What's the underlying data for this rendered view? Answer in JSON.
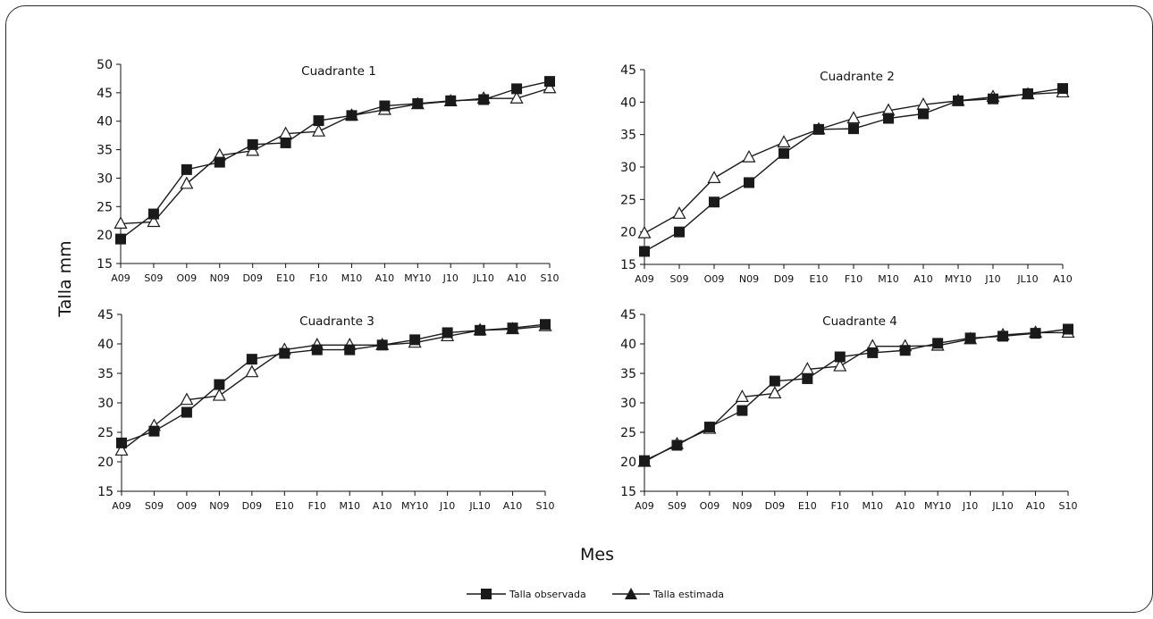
{
  "ylabel": "Talla mm",
  "xlabel": "Mes",
  "legend": {
    "observed_label": "Talla observada",
    "estimated_label": "Talla estimada"
  },
  "colors": {
    "line": "#1a1a1a",
    "observed_fill": "#1a1a1a",
    "estimated_fill": "#ffffff"
  },
  "chart_data": [
    {
      "type": "line",
      "title": "Cuadrante 1",
      "categories": [
        "A09",
        "S09",
        "O09",
        "N09",
        "D09",
        "E10",
        "F10",
        "M10",
        "A10",
        "MY10",
        "J10",
        "JL10",
        "A10",
        "S10"
      ],
      "yticks": [
        15,
        20,
        25,
        30,
        35,
        40,
        45,
        50
      ],
      "ylim": [
        15,
        50
      ],
      "series": [
        {
          "name": "Talla observada",
          "marker": "square",
          "values": [
            19.3,
            23.7,
            31.5,
            32.8,
            35.9,
            36.2,
            40.1,
            41.0,
            42.7,
            43.1,
            43.6,
            43.8,
            45.7,
            47.0
          ]
        },
        {
          "name": "Talla estimada",
          "marker": "triangle",
          "values": [
            22.0,
            22.3,
            29.0,
            34.0,
            34.8,
            37.8,
            38.2,
            41.0,
            42.0,
            43.0,
            43.5,
            44.0,
            44.0,
            45.8
          ]
        }
      ]
    },
    {
      "type": "line",
      "title": "Cuadrante 2",
      "categories": [
        "A09",
        "S09",
        "O09",
        "N09",
        "D09",
        "E10",
        "F10",
        "M10",
        "A10",
        "MY10",
        "J10",
        "JL10",
        "A10"
      ],
      "yticks": [
        15,
        20,
        25,
        30,
        35,
        40,
        45
      ],
      "ylim": [
        15,
        45
      ],
      "series": [
        {
          "name": "Talla observada",
          "marker": "square",
          "values": [
            17.0,
            20.0,
            24.6,
            27.6,
            32.1,
            35.8,
            35.9,
            37.5,
            38.2,
            40.2,
            40.5,
            41.3,
            42.1
          ]
        },
        {
          "name": "Talla estimada",
          "marker": "triangle",
          "values": [
            19.8,
            22.8,
            28.3,
            31.5,
            33.8,
            35.8,
            37.5,
            38.7,
            39.6,
            40.2,
            40.8,
            41.2,
            41.5
          ]
        }
      ]
    },
    {
      "type": "line",
      "title": "Cuadrante 3",
      "categories": [
        "A09",
        "S09",
        "O09",
        "N09",
        "D09",
        "E10",
        "F10",
        "M10",
        "A10",
        "MY10",
        "J10",
        "JL10",
        "A10",
        "S10"
      ],
      "yticks": [
        15,
        20,
        25,
        30,
        35,
        40,
        45
      ],
      "ylim": [
        15,
        45
      ],
      "series": [
        {
          "name": "Talla observada",
          "marker": "square",
          "values": [
            23.2,
            25.2,
            28.4,
            33.1,
            37.4,
            38.4,
            39.0,
            39.0,
            39.8,
            40.7,
            41.9,
            42.3,
            42.7,
            43.3
          ]
        },
        {
          "name": "Talla estimada",
          "marker": "triangle",
          "values": [
            21.9,
            26.1,
            30.5,
            31.2,
            35.2,
            39.0,
            39.8,
            39.8,
            39.8,
            40.2,
            41.3,
            42.3,
            42.5,
            43.0
          ]
        }
      ]
    },
    {
      "type": "line",
      "title": "Cuadrante 4",
      "categories": [
        "A09",
        "S09",
        "O09",
        "N09",
        "D09",
        "E10",
        "F10",
        "M10",
        "A10",
        "MY10",
        "J10",
        "JL10",
        "A10",
        "S10"
      ],
      "yticks": [
        15,
        20,
        25,
        30,
        35,
        40,
        45
      ],
      "ylim": [
        15,
        45
      ],
      "series": [
        {
          "name": "Talla observada",
          "marker": "square",
          "values": [
            20.2,
            22.8,
            25.9,
            28.7,
            33.7,
            34.1,
            37.8,
            38.5,
            38.9,
            40.1,
            41.0,
            41.3,
            41.8,
            42.5
          ]
        },
        {
          "name": "Talla estimada",
          "marker": "triangle",
          "values": [
            20.0,
            23.0,
            25.6,
            31.0,
            31.6,
            35.7,
            36.2,
            39.6,
            39.6,
            39.7,
            40.8,
            41.5,
            41.9,
            41.9
          ]
        }
      ]
    }
  ]
}
